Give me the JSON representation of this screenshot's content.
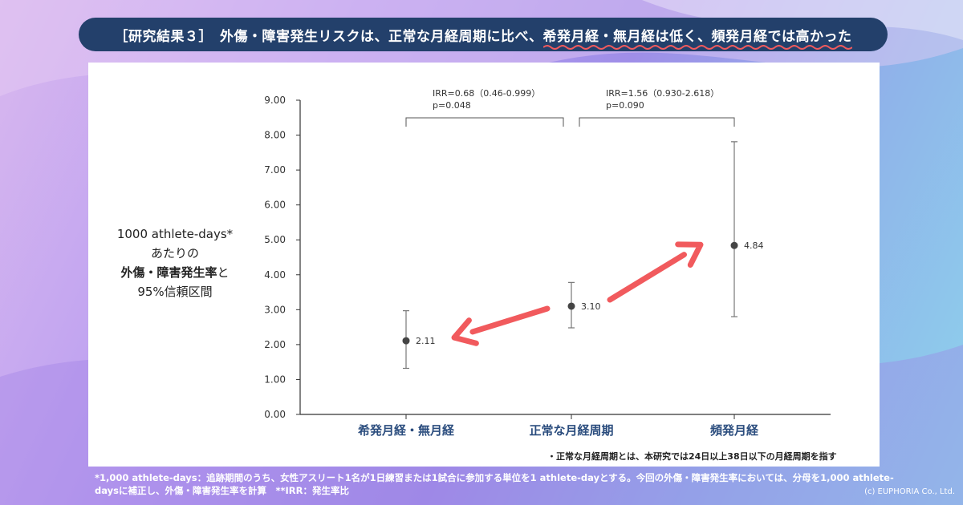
{
  "title": {
    "prefix": "［研究結果３］　外傷・障害発生リスクは、正常な月経周期に比べ、",
    "highlight": "希発月経・無月経は低く、頻発月経では高かった"
  },
  "y_axis_label": {
    "line1": "1000 athlete-days*",
    "line2": "あたりの",
    "line3_bold": "外傷・障害発生率",
    "line3_tail": "と",
    "line4": "95%信頼区間"
  },
  "comparisons": [
    {
      "irr": "IRR=0.68（0.46-0.999）",
      "p": "p=0.048"
    },
    {
      "irr": "IRR=1.56（0.930-2.618）",
      "p": "p=0.090"
    }
  ],
  "chart_data": {
    "type": "scatter",
    "categories": [
      "希発月経・無月経",
      "正常な月経周期",
      "頻発月経"
    ],
    "values": [
      2.11,
      3.1,
      4.84
    ],
    "value_labels": [
      "2.11",
      "3.10",
      "4.84"
    ],
    "ci_lower": [
      1.32,
      2.48,
      2.8
    ],
    "ci_upper": [
      2.97,
      3.78,
      7.81
    ],
    "ylim": [
      0,
      9
    ],
    "yticks": [
      "0.00",
      "1.00",
      "2.00",
      "3.00",
      "4.00",
      "5.00",
      "6.00",
      "7.00",
      "8.00",
      "9.00"
    ],
    "grid": false
  },
  "colors": {
    "arrow": "#f15a5d",
    "title_bg": "#23406b",
    "category_label": "#2b4d7e",
    "squiggle": "#f15a5d"
  },
  "note_right": "・正常な月経周期とは、本研究では24日以上38日以下の月経周期を指す",
  "footnote": {
    "line1": "*1,000 athlete-days：追跡期間のうち、女性アスリート1名が1日練習または1試合に参加する単位を1 athlete-dayとする。今回の外傷・障害発生率においては、分母を1,000 athlete-",
    "line2": "daysに補正し、外傷・障害発生率を計算　**IRR：発生率比"
  },
  "copyright": "(c) EUPHORIA Co., Ltd."
}
